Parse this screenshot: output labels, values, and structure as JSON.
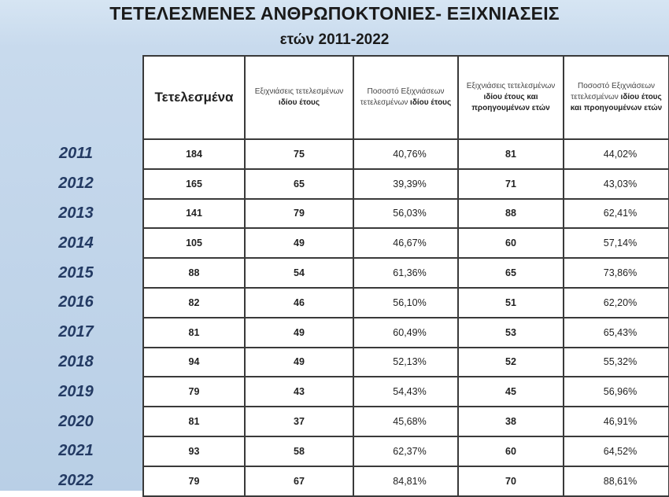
{
  "title": "ΤΕΤΕΛΕΣΜΕΝΕΣ ΑΝΘΡΩΠΟΚΤΟΝΙΕΣ- ΕΞΙΧΝΙΑΣΕΙΣ",
  "subtitle": "ετών 2011-2022",
  "headers": {
    "committed": "Τετελεσμένα",
    "solved_same_year": {
      "pre": "Εξιχνιάσεις τετελεσμένων ",
      "bold": "ιδίου έτους"
    },
    "pct_same_year": {
      "pre": "Ποσοστό Εξιχνιάσεων τετελεσμένων ",
      "bold": "ιδίου έτους"
    },
    "solved_incl_prev": {
      "pre": "Εξιχνιάσεις τετελεσμένων ",
      "bold": "ιδίου έτους και προηγουμένων ετών"
    },
    "pct_incl_prev": {
      "pre": "Ποσοστό Εξιχνιάσεων τετελεσμένων ",
      "bold": "ιδίου έτους και προηγουμένων ετών"
    }
  },
  "rows": [
    {
      "year": "2011",
      "committed": "184",
      "solved_same": "75",
      "pct_same": "40,76%",
      "solved_prev": "81",
      "pct_prev": "44,02%"
    },
    {
      "year": "2012",
      "committed": "165",
      "solved_same": "65",
      "pct_same": "39,39%",
      "solved_prev": "71",
      "pct_prev": "43,03%"
    },
    {
      "year": "2013",
      "committed": "141",
      "solved_same": "79",
      "pct_same": "56,03%",
      "solved_prev": "88",
      "pct_prev": "62,41%"
    },
    {
      "year": "2014",
      "committed": "105",
      "solved_same": "49",
      "pct_same": "46,67%",
      "solved_prev": "60",
      "pct_prev": "57,14%"
    },
    {
      "year": "2015",
      "committed": "88",
      "solved_same": "54",
      "pct_same": "61,36%",
      "solved_prev": "65",
      "pct_prev": "73,86%"
    },
    {
      "year": "2016",
      "committed": "82",
      "solved_same": "46",
      "pct_same": "56,10%",
      "solved_prev": "51",
      "pct_prev": "62,20%"
    },
    {
      "year": "2017",
      "committed": "81",
      "solved_same": "49",
      "pct_same": "60,49%",
      "solved_prev": "53",
      "pct_prev": "65,43%"
    },
    {
      "year": "2018",
      "committed": "94",
      "solved_same": "49",
      "pct_same": "52,13%",
      "solved_prev": "52",
      "pct_prev": "55,32%"
    },
    {
      "year": "2019",
      "committed": "79",
      "solved_same": "43",
      "pct_same": "54,43%",
      "solved_prev": "45",
      "pct_prev": "56,96%"
    },
    {
      "year": "2020",
      "committed": "81",
      "solved_same": "37",
      "pct_same": "45,68%",
      "solved_prev": "38",
      "pct_prev": "46,91%"
    },
    {
      "year": "2021",
      "committed": "93",
      "solved_same": "58",
      "pct_same": "62,37%",
      "solved_prev": "60",
      "pct_prev": "64,52%"
    },
    {
      "year": "2022",
      "committed": "79",
      "solved_same": "67",
      "pct_same": "84,81%",
      "solved_prev": "70",
      "pct_prev": "88,61%"
    }
  ]
}
